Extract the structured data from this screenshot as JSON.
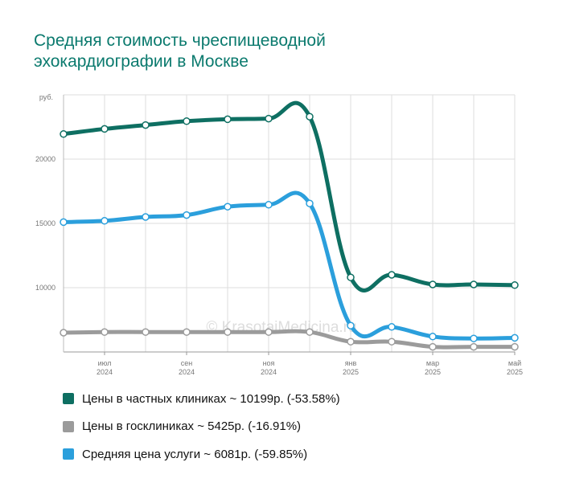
{
  "title": "Средняя стоимость чреспищеводной эхокардиографии в Москве",
  "watermark": "© KrasotaiMedicina.ru",
  "colors": {
    "title": "#0b7a6e",
    "private": "#0e6f62",
    "public": "#9b9b9b",
    "average": "#2b9fdc",
    "grid": "#dddddd",
    "axis_text": "#777777"
  },
  "chart_data": {
    "type": "line",
    "title": "Средняя стоимость чреспищеводной эхокардиографии в Москве",
    "y_unit_label": "руб.",
    "ylim": [
      5000,
      25000
    ],
    "y_ticks": [
      {
        "value": 10000,
        "label": "10000"
      },
      {
        "value": 15000,
        "label": "15000"
      },
      {
        "value": 20000,
        "label": "20000"
      }
    ],
    "x_ticks": [
      {
        "index": 1,
        "month": "июл",
        "year": "2024"
      },
      {
        "index": 3,
        "month": "сен",
        "year": "2024"
      },
      {
        "index": 5,
        "month": "ноя",
        "year": "2024"
      },
      {
        "index": 7,
        "month": "янв",
        "year": "2025"
      },
      {
        "index": 9,
        "month": "мар",
        "year": "2025"
      },
      {
        "index": 11,
        "month": "май",
        "year": "2025"
      }
    ],
    "x": [
      "2024-06",
      "2024-07",
      "2024-08",
      "2024-09",
      "2024-10",
      "2024-11",
      "2024-12",
      "2025-01",
      "2025-02",
      "2025-03",
      "2025-04",
      "2025-05"
    ],
    "grid": true,
    "legend_position": "bottom",
    "series": [
      {
        "key": "private",
        "name": "Цены в частных клиниках ~ 10199р. (-53.58%)",
        "color": "#0e6f62",
        "values": [
          21950,
          22350,
          22650,
          22950,
          23100,
          23150,
          23300,
          10800,
          11000,
          10250,
          10250,
          10200
        ]
      },
      {
        "key": "public",
        "name": "Цены в госклиниках ~ 5425р. (-16.91%)",
        "color": "#9b9b9b",
        "values": [
          6500,
          6550,
          6550,
          6550,
          6550,
          6550,
          6550,
          5800,
          5800,
          5400,
          5400,
          5400
        ]
      },
      {
        "key": "average",
        "name": "Средняя цена услуги ~ 6081р. (-59.85%)",
        "color": "#2b9fdc",
        "values": [
          15100,
          15200,
          15500,
          15650,
          16300,
          16450,
          16550,
          7050,
          6950,
          6200,
          6050,
          6100
        ]
      }
    ]
  }
}
